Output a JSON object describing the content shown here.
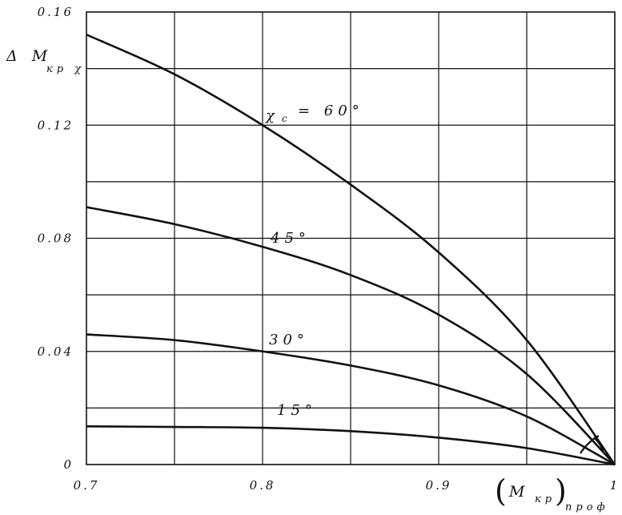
{
  "chart_data": {
    "type": "line",
    "x_ticks": [
      0.7,
      0.8,
      0.9,
      1
    ],
    "x_tick_labels": [
      "0.7",
      "0.8",
      "0.9",
      "1"
    ],
    "y_ticks": [
      0,
      0.04,
      0.08,
      0.12,
      0.16
    ],
    "y_tick_labels": [
      "0",
      "0.04",
      "0.08",
      "0.12",
      "0.16"
    ],
    "xlim": [
      0.7,
      1.0
    ],
    "ylim": [
      0,
      0.16
    ],
    "grid": true,
    "ylabel": {
      "main": "Δ M",
      "sub": "кр χ"
    },
    "xlabel": {
      "open": "(",
      "main": "M",
      "sub1": "кр",
      "close": ")",
      "sub2": "проф"
    },
    "series": [
      {
        "name": "χ",
        "name_sub": "с",
        "name_value": "= 60°",
        "x": [
          0.7,
          0.75,
          0.8,
          0.85,
          0.9,
          0.95,
          1.0
        ],
        "y": [
          0.152,
          0.138,
          0.12,
          0.099,
          0.075,
          0.044,
          0.0
        ]
      },
      {
        "name": "45°",
        "x": [
          0.7,
          0.75,
          0.8,
          0.85,
          0.9,
          0.95,
          1.0
        ],
        "y": [
          0.091,
          0.085,
          0.077,
          0.067,
          0.053,
          0.032,
          0.0
        ]
      },
      {
        "name": "30°",
        "x": [
          0.7,
          0.75,
          0.8,
          0.85,
          0.9,
          0.95,
          1.0
        ],
        "y": [
          0.046,
          0.044,
          0.04,
          0.035,
          0.028,
          0.017,
          0.0
        ]
      },
      {
        "name": "15°",
        "x": [
          0.7,
          0.75,
          0.8,
          0.85,
          0.9,
          0.95,
          1.0
        ],
        "y": [
          0.0135,
          0.0133,
          0.013,
          0.0118,
          0.0095,
          0.0058,
          0.0
        ]
      }
    ]
  }
}
